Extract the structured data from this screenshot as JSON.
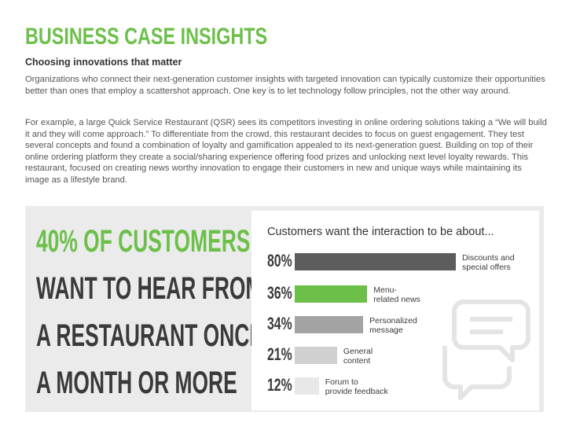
{
  "header": {
    "title": "BUSINESS CASE INSIGHTS",
    "subtitle": "Choosing innovations that matter"
  },
  "body": {
    "paragraph1": "Organizations who connect their next-generation customer insights with targeted innovation can typically customize their opportunities better than ones that employ a scattershot approach. One key is to let technology follow principles, not the other way around.",
    "paragraph2": "For example, a large Quick Service Restaurant (QSR) sees its competitors investing in online ordering solutions taking a “We will build it and they will come approach.”  To differentiate from the crowd, this restaurant decides to focus on guest engagement. They test several concepts and found a combination of loyalty and gamification appealed to its next-generation guest.  Building on top of their online ordering platform they create a social/sharing experience offering food prizes and unlocking next level loyalty rewards.  This restaurant, focused on creating news worthy innovation to engage their customers in new and unique ways while maintaining its image as a lifestyle brand."
  },
  "callout": {
    "line1": "40% OF CUSTOMERS",
    "line2": "WANT TO HEAR FROM",
    "line3": "A RESTAURANT ONCE",
    "line4": "A MONTH OR MORE"
  },
  "chart_data": {
    "type": "bar",
    "title": "Customers want the interaction to be about...",
    "categories": [
      "Discounts and special offers",
      "Menu-related news",
      "Personalized message",
      "General content",
      "Forum to provide feedback"
    ],
    "label_lines": [
      [
        "Discounts and",
        "special offers"
      ],
      [
        "Menu-",
        "related news"
      ],
      [
        "Personalized",
        "message"
      ],
      [
        "General",
        "content"
      ],
      [
        "Forum to",
        "provide feedback"
      ]
    ],
    "value_labels": [
      "80%",
      "36%",
      "34%",
      "21%",
      "12%"
    ],
    "values": [
      80,
      36,
      34,
      21,
      12
    ],
    "colors": [
      "#5d5d5d",
      "#6cc04a",
      "#a3a3a3",
      "#d0d0d0",
      "#e8e8e8"
    ],
    "xlim": [
      0,
      80
    ]
  },
  "icons": {
    "decoration": "chat-bubbles-icon"
  }
}
